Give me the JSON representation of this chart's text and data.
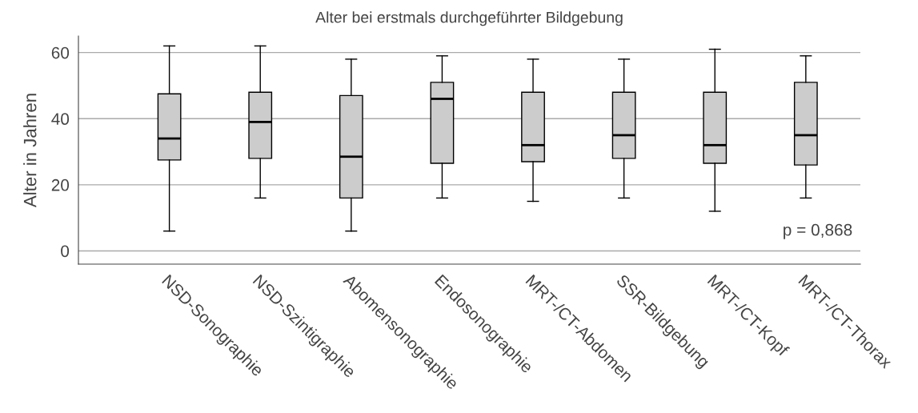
{
  "chart_data": {
    "type": "box",
    "title": "Alter bei erstmals durchgeführter Bildgebung",
    "ylabel": "Alter in Jahren",
    "categories": [
      "NSD-Sonographie",
      "NSD-Szintigraphie",
      "Abomensonographie",
      "Endosonographie",
      "MRT-/CT-Abdomen",
      "SSR-Bildgebung",
      "MRT-/CT-Kopf",
      "MRT-/CT-Thorax"
    ],
    "boxes": [
      {
        "low": 6,
        "q1": 27.5,
        "median": 34,
        "q3": 47.5,
        "high": 62
      },
      {
        "low": 16,
        "q1": 28,
        "median": 39,
        "q3": 48,
        "high": 62
      },
      {
        "low": 6,
        "q1": 16,
        "median": 28.5,
        "q3": 47,
        "high": 58
      },
      {
        "low": 16,
        "q1": 26.5,
        "median": 46,
        "q3": 51,
        "high": 59
      },
      {
        "low": 15,
        "q1": 27,
        "median": 32,
        "q3": 48,
        "high": 58
      },
      {
        "low": 16,
        "q1": 28,
        "median": 35,
        "q3": 48,
        "high": 58
      },
      {
        "low": 12,
        "q1": 26.5,
        "median": 32,
        "q3": 48,
        "high": 61
      },
      {
        "low": 16,
        "q1": 26,
        "median": 35,
        "q3": 51,
        "high": 59
      }
    ],
    "color": "#cccccc",
    "ylim": [
      -4,
      65
    ],
    "yticks": [
      0,
      20,
      40,
      60
    ],
    "grid": "y",
    "annotations": [
      "p = 0,868"
    ]
  }
}
